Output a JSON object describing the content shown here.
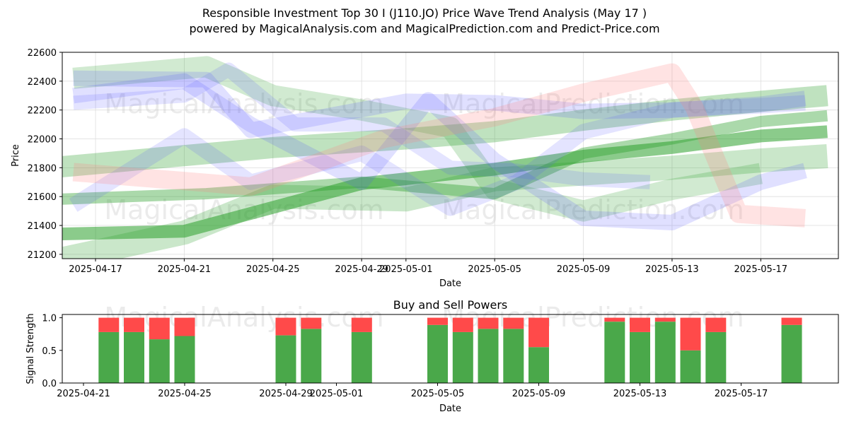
{
  "title": "Responsible Investment Top 30 I (J110.JO) Price Wave Trend Analysis (May 17 )",
  "subtitle": "powered by MagicalAnalysis.com and MagicalPrediction.com and Predict-Price.com",
  "watermarks": [
    "MagicalAnalysis.com",
    "MagicalPrediction.com"
  ],
  "colors": {
    "green": "#2ca02c",
    "blue": "#5555ff",
    "red": "#ff7f7f",
    "buy": "#4aa84a",
    "sell": "#ff4a4a",
    "axis": "#000000",
    "grid": "#dddddd"
  },
  "chart_data": [
    {
      "type": "line",
      "xlabel": "Date",
      "ylabel": "Price",
      "ylim": [
        21170,
        22600
      ],
      "xlim": [
        "2025-04-15T12:00",
        "2025-05-20T12:00"
      ],
      "y_ticks": [
        21200,
        21400,
        21600,
        21800,
        22000,
        22200,
        22400,
        22600
      ],
      "x_ticks": [
        "2025-04-17",
        "2025-04-21",
        "2025-04-25",
        "2025-04-29",
        "2025-05-01",
        "2025-05-05",
        "2025-05-09",
        "2025-05-13",
        "2025-05-17"
      ],
      "grid": true,
      "series": [
        {
          "color": "green",
          "width": 18,
          "opacity": 0.55,
          "x": [
            "2025-04-15",
            "2025-04-21",
            "2025-04-29",
            "2025-05-05",
            "2025-05-09",
            "2025-05-13",
            "2025-05-17",
            "2025-05-20"
          ],
          "y": [
            21340,
            21360,
            21690,
            21790,
            21880,
            21940,
            22020,
            22050
          ]
        },
        {
          "color": "green",
          "width": 16,
          "opacity": 0.4,
          "x": [
            "2025-04-15",
            "2025-04-22",
            "2025-04-29",
            "2025-05-05",
            "2025-05-09",
            "2025-05-13",
            "2025-05-17",
            "2025-05-20"
          ],
          "y": [
            21580,
            21620,
            21700,
            21620,
            21900,
            22000,
            22120,
            22160
          ]
        },
        {
          "color": "green",
          "width": 30,
          "opacity": 0.3,
          "x": [
            "2025-04-15",
            "2025-04-20",
            "2025-04-25",
            "2025-05-01",
            "2025-05-05",
            "2025-05-09",
            "2025-05-13",
            "2025-05-17",
            "2025-05-20"
          ],
          "y": [
            21800,
            21870,
            21940,
            22000,
            22050,
            22130,
            22200,
            22260,
            22300
          ]
        },
        {
          "color": "green",
          "width": 34,
          "opacity": 0.25,
          "x": [
            "2025-04-15",
            "2025-04-21",
            "2025-04-25",
            "2025-05-01",
            "2025-05-05",
            "2025-05-09",
            "2025-05-13",
            "2025-05-17",
            "2025-05-20"
          ],
          "y": [
            21150,
            21350,
            21600,
            21580,
            21720,
            21760,
            21800,
            21850,
            21880
          ]
        },
        {
          "color": "green",
          "width": 30,
          "opacity": 0.22,
          "x": [
            "2025-04-16",
            "2025-04-22",
            "2025-04-25",
            "2025-04-29",
            "2025-05-03",
            "2025-05-05",
            "2025-05-09",
            "2025-05-13",
            "2025-05-17"
          ],
          "y": [
            22420,
            22500,
            22300,
            22200,
            22080,
            21650,
            21500,
            21650,
            21760
          ]
        },
        {
          "color": "blue",
          "width": 22,
          "opacity": 0.18,
          "x": [
            "2025-04-16",
            "2025-04-22",
            "2025-04-24",
            "2025-05-01",
            "2025-05-05",
            "2025-05-09",
            "2025-05-13",
            "2025-05-17",
            "2025-05-19"
          ],
          "y": [
            22420,
            22410,
            22060,
            22260,
            22250,
            22190,
            22200,
            22240,
            22280
          ]
        },
        {
          "color": "blue",
          "width": 22,
          "opacity": 0.18,
          "x": [
            "2025-04-16",
            "2025-04-21",
            "2025-04-24",
            "2025-04-29",
            "2025-05-02",
            "2025-05-05",
            "2025-05-09",
            "2025-05-13",
            "2025-05-17",
            "2025-05-19"
          ],
          "y": [
            22300,
            22400,
            22100,
            21700,
            22270,
            21850,
            21450,
            21420,
            21700,
            21780
          ]
        },
        {
          "color": "blue",
          "width": 22,
          "opacity": 0.16,
          "x": [
            "2025-04-16",
            "2025-04-21",
            "2025-04-24",
            "2025-04-29",
            "2025-05-03",
            "2025-05-06",
            "2025-05-09",
            "2025-05-13",
            "2025-05-17",
            "2025-05-19"
          ],
          "y": [
            21540,
            22020,
            21700,
            21900,
            21520,
            21700,
            22050,
            22200,
            22230,
            22250
          ]
        },
        {
          "color": "blue",
          "width": 20,
          "opacity": 0.16,
          "x": [
            "2025-04-16",
            "2025-04-21",
            "2025-04-23",
            "2025-04-26",
            "2025-04-30",
            "2025-05-03",
            "2025-05-06",
            "2025-05-09",
            "2025-05-12"
          ],
          "y": [
            22250,
            22300,
            22480,
            22100,
            22100,
            21800,
            21780,
            21720,
            21700
          ]
        },
        {
          "color": "red",
          "width": 26,
          "opacity": 0.22,
          "x": [
            "2025-04-16",
            "2025-04-24",
            "2025-04-30",
            "2025-05-05",
            "2025-05-09",
            "2025-05-13",
            "2025-05-14",
            "2025-05-16",
            "2025-05-19"
          ],
          "y": [
            21770,
            21670,
            22000,
            22150,
            22320,
            22460,
            22220,
            21480,
            21450
          ]
        }
      ]
    },
    {
      "type": "bar",
      "title": "Buy and Sell Powers",
      "xlabel": "Date",
      "ylabel": "Signal Strength",
      "ylim": [
        0,
        1.05
      ],
      "y_ticks": [
        "0.0",
        "0.5",
        "1.0"
      ],
      "x_ticks": [
        "2025-04-21",
        "2025-04-25",
        "2025-04-29",
        "2025-05-01",
        "2025-05-05",
        "2025-05-09",
        "2025-05-13",
        "2025-05-17"
      ],
      "categories": [
        "2025-04-22",
        "2025-04-23",
        "2025-04-24",
        "2025-04-25",
        "2025-04-29",
        "2025-04-30",
        "2025-05-02",
        "2025-05-05",
        "2025-05-06",
        "2025-05-07",
        "2025-05-08",
        "2025-05-09",
        "2025-05-12",
        "2025-05-13",
        "2025-05-14",
        "2025-05-15",
        "2025-05-16",
        "2025-05-19"
      ],
      "series": [
        {
          "key": "buy",
          "values": [
            0.78,
            0.78,
            0.67,
            0.72,
            0.73,
            0.83,
            0.78,
            0.89,
            0.78,
            0.83,
            0.83,
            0.55,
            0.94,
            0.78,
            0.94,
            0.5,
            0.78,
            0.89
          ]
        },
        {
          "key": "sell",
          "values": [
            0.22,
            0.22,
            0.33,
            0.28,
            0.27,
            0.17,
            0.22,
            0.11,
            0.22,
            0.17,
            0.17,
            0.45,
            0.06,
            0.22,
            0.06,
            0.5,
            0.22,
            0.11
          ]
        }
      ]
    }
  ]
}
